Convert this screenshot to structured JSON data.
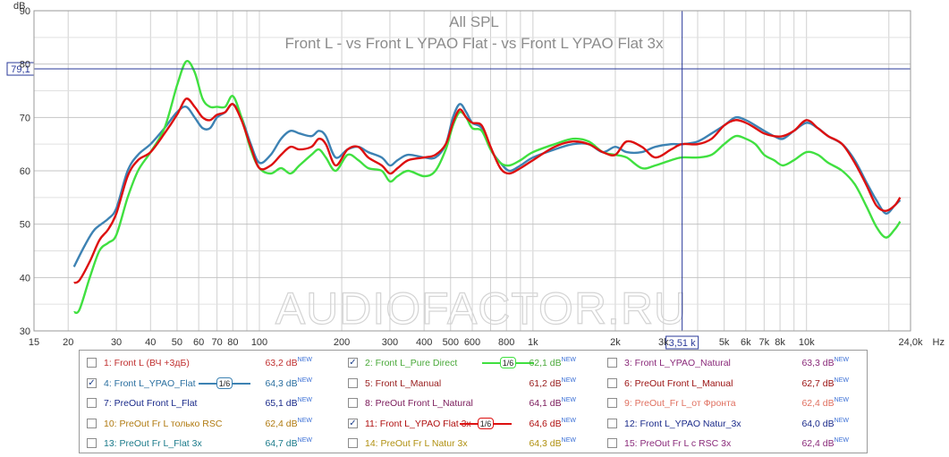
{
  "chart_data": {
    "type": "line",
    "title": "All SPL",
    "subtitle": "Front L - vs Front L YPAO Flat - vs Front L YPAO Flat 3x",
    "ylabel": "dB",
    "xlabel": "Hz",
    "x_scale": "log",
    "xlim": [
      15,
      24000
    ],
    "ylim": [
      30,
      90
    ],
    "grid": true,
    "y_ticks": [
      "30",
      "40",
      "50",
      "60",
      "70",
      "80",
      "90"
    ],
    "x_ticks": [
      {
        "value": 15,
        "label": "15"
      },
      {
        "value": 20,
        "label": "20"
      },
      {
        "value": 30,
        "label": "30"
      },
      {
        "value": 40,
        "label": "40"
      },
      {
        "value": 50,
        "label": "50"
      },
      {
        "value": 60,
        "label": "60"
      },
      {
        "value": 70,
        "label": "70"
      },
      {
        "value": 80,
        "label": "80"
      },
      {
        "value": 100,
        "label": "100"
      },
      {
        "value": 200,
        "label": "200"
      },
      {
        "value": 300,
        "label": "300"
      },
      {
        "value": 400,
        "label": "400"
      },
      {
        "value": 500,
        "label": "500"
      },
      {
        "value": 600,
        "label": "600"
      },
      {
        "value": 800,
        "label": "800"
      },
      {
        "value": 1000,
        "label": "1k"
      },
      {
        "value": 2000,
        "label": "2k"
      },
      {
        "value": 3000,
        "label": "3k"
      },
      {
        "value": 5000,
        "label": "5k"
      },
      {
        "value": 6000,
        "label": "6k"
      },
      {
        "value": 7000,
        "label": "7k"
      },
      {
        "value": 8000,
        "label": "8k"
      },
      {
        "value": 10000,
        "label": "10k"
      },
      {
        "value": 24000,
        "label": "24,0k"
      }
    ],
    "cursor": {
      "y": 79.1,
      "y_label": "79,1",
      "x": 3510,
      "x_label": "3,51 k"
    },
    "watermark": "AUDIOFACTOR.RU",
    "series": [
      {
        "name": "4: Front L_YPAO_Flat",
        "color": "#3d82b3",
        "points": [
          [
            21,
            42
          ],
          [
            23,
            46
          ],
          [
            25,
            49
          ],
          [
            28,
            51
          ],
          [
            30,
            53
          ],
          [
            33,
            60
          ],
          [
            36,
            63
          ],
          [
            40,
            65
          ],
          [
            45,
            68
          ],
          [
            50,
            71
          ],
          [
            54,
            72
          ],
          [
            58,
            70
          ],
          [
            62,
            68
          ],
          [
            66,
            68
          ],
          [
            70,
            70
          ],
          [
            75,
            71
          ],
          [
            80,
            72.5
          ],
          [
            86,
            70
          ],
          [
            93,
            65
          ],
          [
            100,
            61.5
          ],
          [
            110,
            63
          ],
          [
            120,
            66
          ],
          [
            130,
            67.5
          ],
          [
            140,
            67
          ],
          [
            155,
            66.5
          ],
          [
            165,
            67.5
          ],
          [
            175,
            66.5
          ],
          [
            190,
            62.5
          ],
          [
            210,
            64
          ],
          [
            230,
            64.5
          ],
          [
            250,
            63.5
          ],
          [
            280,
            62.5
          ],
          [
            300,
            61
          ],
          [
            320,
            62
          ],
          [
            350,
            63
          ],
          [
            400,
            62.5
          ],
          [
            440,
            62.5
          ],
          [
            480,
            65
          ],
          [
            510,
            70
          ],
          [
            540,
            72.5
          ],
          [
            570,
            71
          ],
          [
            600,
            69
          ],
          [
            650,
            68
          ],
          [
            700,
            64
          ],
          [
            760,
            61.5
          ],
          [
            820,
            60
          ],
          [
            900,
            61
          ],
          [
            1000,
            62.5
          ],
          [
            1200,
            64
          ],
          [
            1400,
            65
          ],
          [
            1600,
            65
          ],
          [
            1800,
            63.5
          ],
          [
            2000,
            64.5
          ],
          [
            2200,
            63.5
          ],
          [
            2500,
            63.5
          ],
          [
            2800,
            64.5
          ],
          [
            3200,
            65
          ],
          [
            3500,
            65
          ],
          [
            4000,
            65.5
          ],
          [
            4500,
            67
          ],
          [
            5000,
            68.5
          ],
          [
            5500,
            70
          ],
          [
            6000,
            69.5
          ],
          [
            6500,
            68.5
          ],
          [
            7000,
            67.5
          ],
          [
            7600,
            66.5
          ],
          [
            8200,
            66
          ],
          [
            9000,
            67.5
          ],
          [
            10000,
            69
          ],
          [
            11000,
            68
          ],
          [
            12000,
            66.5
          ],
          [
            13500,
            65
          ],
          [
            15000,
            62
          ],
          [
            16500,
            58
          ],
          [
            18000,
            54.5
          ],
          [
            19500,
            52
          ],
          [
            21000,
            53.5
          ],
          [
            22000,
            54.5
          ]
        ]
      },
      {
        "name": "2: Front L_Pure Direct",
        "color": "#40e040",
        "points": [
          [
            21,
            33.5
          ],
          [
            22,
            34
          ],
          [
            24,
            40
          ],
          [
            26,
            45
          ],
          [
            28,
            46.5
          ],
          [
            30,
            48
          ],
          [
            33,
            55
          ],
          [
            36,
            60
          ],
          [
            40,
            63.5
          ],
          [
            45,
            68
          ],
          [
            50,
            76
          ],
          [
            54,
            80.5
          ],
          [
            58,
            78.5
          ],
          [
            62,
            73.5
          ],
          [
            66,
            72
          ],
          [
            70,
            72
          ],
          [
            75,
            72
          ],
          [
            80,
            74
          ],
          [
            86,
            70
          ],
          [
            93,
            64
          ],
          [
            100,
            60.5
          ],
          [
            110,
            59.5
          ],
          [
            120,
            60.5
          ],
          [
            130,
            59.5
          ],
          [
            140,
            61
          ],
          [
            155,
            63
          ],
          [
            165,
            64
          ],
          [
            175,
            62.5
          ],
          [
            190,
            60
          ],
          [
            210,
            63
          ],
          [
            230,
            62
          ],
          [
            250,
            60.5
          ],
          [
            280,
            60
          ],
          [
            300,
            58
          ],
          [
            320,
            59
          ],
          [
            350,
            60
          ],
          [
            400,
            59
          ],
          [
            440,
            60
          ],
          [
            480,
            64
          ],
          [
            510,
            68.5
          ],
          [
            540,
            71
          ],
          [
            570,
            70
          ],
          [
            600,
            68
          ],
          [
            650,
            67.5
          ],
          [
            700,
            64
          ],
          [
            760,
            61.5
          ],
          [
            820,
            61
          ],
          [
            900,
            62
          ],
          [
            1000,
            63.5
          ],
          [
            1200,
            65
          ],
          [
            1400,
            66
          ],
          [
            1600,
            65.5
          ],
          [
            1800,
            63.5
          ],
          [
            2000,
            63
          ],
          [
            2200,
            62.5
          ],
          [
            2500,
            60.5
          ],
          [
            2800,
            61
          ],
          [
            3200,
            62
          ],
          [
            3500,
            62.5
          ],
          [
            4000,
            62.5
          ],
          [
            4500,
            63
          ],
          [
            5000,
            65
          ],
          [
            5500,
            66.5
          ],
          [
            6000,
            66
          ],
          [
            6500,
            65
          ],
          [
            7000,
            63
          ],
          [
            7600,
            62
          ],
          [
            8200,
            61
          ],
          [
            9000,
            62
          ],
          [
            10000,
            63.5
          ],
          [
            11000,
            63
          ],
          [
            12000,
            61.5
          ],
          [
            13500,
            60
          ],
          [
            15000,
            57.5
          ],
          [
            16500,
            53.5
          ],
          [
            18000,
            49.5
          ],
          [
            19500,
            47.5
          ],
          [
            21000,
            49
          ],
          [
            22000,
            50.5
          ]
        ]
      },
      {
        "name": "11: Front L_YPAO Flat 3x",
        "color": "#dd1010",
        "points": [
          [
            21,
            39
          ],
          [
            22,
            39.5
          ],
          [
            24,
            43
          ],
          [
            26,
            47
          ],
          [
            28,
            49
          ],
          [
            30,
            52
          ],
          [
            33,
            59
          ],
          [
            36,
            62
          ],
          [
            40,
            63.5
          ],
          [
            45,
            67
          ],
          [
            50,
            70.5
          ],
          [
            54,
            73.5
          ],
          [
            58,
            72
          ],
          [
            62,
            70
          ],
          [
            66,
            69.5
          ],
          [
            70,
            70.5
          ],
          [
            75,
            71
          ],
          [
            80,
            72.5
          ],
          [
            86,
            69.5
          ],
          [
            93,
            64.5
          ],
          [
            100,
            60.5
          ],
          [
            110,
            61
          ],
          [
            120,
            63
          ],
          [
            130,
            64.5
          ],
          [
            140,
            64
          ],
          [
            155,
            64.5
          ],
          [
            165,
            66
          ],
          [
            175,
            65
          ],
          [
            190,
            61
          ],
          [
            210,
            64
          ],
          [
            230,
            64.5
          ],
          [
            250,
            62.5
          ],
          [
            280,
            61
          ],
          [
            300,
            59.5
          ],
          [
            320,
            60.5
          ],
          [
            350,
            62
          ],
          [
            400,
            62.5
          ],
          [
            440,
            63
          ],
          [
            480,
            65
          ],
          [
            510,
            69
          ],
          [
            540,
            71.5
          ],
          [
            570,
            70
          ],
          [
            600,
            69
          ],
          [
            650,
            68.5
          ],
          [
            700,
            64.5
          ],
          [
            760,
            60.5
          ],
          [
            820,
            59.5
          ],
          [
            900,
            60.5
          ],
          [
            1000,
            62
          ],
          [
            1200,
            64.5
          ],
          [
            1400,
            65.5
          ],
          [
            1600,
            65
          ],
          [
            1800,
            63.5
          ],
          [
            2000,
            63
          ],
          [
            2200,
            65.5
          ],
          [
            2500,
            64.5
          ],
          [
            2800,
            62.5
          ],
          [
            3200,
            64
          ],
          [
            3500,
            65
          ],
          [
            4000,
            65
          ],
          [
            4500,
            66
          ],
          [
            5000,
            68.5
          ],
          [
            5500,
            69.5
          ],
          [
            6000,
            69
          ],
          [
            6500,
            68
          ],
          [
            7000,
            67
          ],
          [
            7600,
            66.5
          ],
          [
            8200,
            66.5
          ],
          [
            9000,
            67.5
          ],
          [
            10000,
            69.5
          ],
          [
            11000,
            68
          ],
          [
            12000,
            66.5
          ],
          [
            13500,
            65
          ],
          [
            15000,
            61.5
          ],
          [
            16500,
            57.5
          ],
          [
            18000,
            53.5
          ],
          [
            19500,
            52.5
          ],
          [
            21000,
            53.5
          ],
          [
            22000,
            55
          ]
        ]
      }
    ]
  },
  "legend": {
    "new_tag": "NEW",
    "smoothing_label": "1/6",
    "items": [
      {
        "label": "1: Front L (ВЧ +3дБ)",
        "value": "63,2 dB",
        "color": "#c03030",
        "checked": false,
        "badge_color": ""
      },
      {
        "label": "2: Front L_Pure Direct",
        "value": "62,1 dB",
        "color": "#4aa93a",
        "checked": true,
        "badge_color": "#40e040"
      },
      {
        "label": "3: Front L_YPAO_Natural",
        "value": "63,3 dB",
        "color": "#8a2a7a",
        "checked": false,
        "badge_color": ""
      },
      {
        "label": "4: Front L_YPAO_Flat",
        "value": "64,3 dB",
        "color": "#2a6fa0",
        "checked": true,
        "badge_color": "#3d82b3"
      },
      {
        "label": "5: Front L_Manual",
        "value": "61,2 dB",
        "color": "#9a2020",
        "checked": false,
        "badge_color": ""
      },
      {
        "label": "6: PreOut Front L_Manual",
        "value": "62,7 dB",
        "color": "#9a1010",
        "checked": false,
        "badge_color": ""
      },
      {
        "label": "7: PreOut Front L_Flat",
        "value": "65,1 dB",
        "color": "#1a2a8a",
        "checked": false,
        "badge_color": ""
      },
      {
        "label": "8: PreOut Front L_Natural",
        "value": "64,1 dB",
        "color": "#7a1a5a",
        "checked": false,
        "badge_color": ""
      },
      {
        "label": "9: PreOut_Fr L_от Фронта",
        "value": "62,4 dB",
        "color": "#e07060",
        "checked": false,
        "badge_color": ""
      },
      {
        "label": "10: PreOut Fr L только RSC",
        "value": "62,4 dB",
        "color": "#b07a10",
        "checked": false,
        "badge_color": ""
      },
      {
        "label": "11: Front L_YPAO Flat 3x",
        "value": "64,6 dB",
        "color": "#b01010",
        "checked": true,
        "badge_color": "#dd1010"
      },
      {
        "label": "12: Front L_YPAO Natur_3x",
        "value": "64,0 dB",
        "color": "#1a2a8a",
        "checked": false,
        "badge_color": ""
      },
      {
        "label": "13: PreOut Fr L_Flat 3x",
        "value": "64,7 dB",
        "color": "#1a7a8a",
        "checked": false,
        "badge_color": ""
      },
      {
        "label": "14: PreOut Fr L Natur 3x",
        "value": "64,3 dB",
        "color": "#b09010",
        "checked": false,
        "badge_color": ""
      },
      {
        "label": "15: PreOut Fr L с RSC 3x",
        "value": "62,4 dB",
        "color": "#8a2a7a",
        "checked": false,
        "badge_color": ""
      }
    ]
  }
}
